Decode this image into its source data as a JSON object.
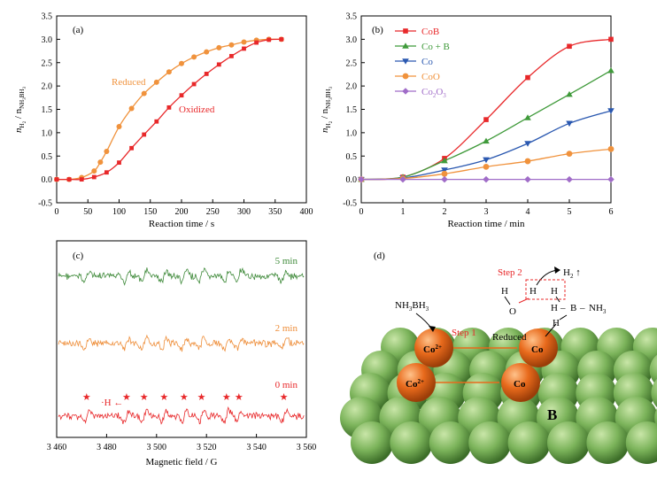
{
  "chart_data": [
    {
      "type": "line",
      "panel_label": "(a)",
      "xlabel": "Reaction time / s",
      "ylabel": "n",
      "ylabel_sub1": "H",
      "ylabel_sub2": "2",
      "ylabel_mid": " / n",
      "ylabel_sub3": "NH",
      "ylabel_sub4": "3",
      "ylabel_sub5": "BH",
      "ylabel_sub6": "3",
      "xlim": [
        0,
        400
      ],
      "ylim": [
        -0.5,
        3.5
      ],
      "xticks": [
        0,
        50,
        100,
        150,
        200,
        250,
        300,
        350,
        400
      ],
      "yticks": [
        -0.5,
        0.0,
        0.5,
        1.0,
        1.5,
        2.0,
        2.5,
        3.0,
        3.5
      ],
      "series": [
        {
          "name": "Reduced",
          "color": "#f0923c",
          "marker": "circle",
          "x": [
            0,
            20,
            40,
            60,
            70,
            80,
            100,
            120,
            140,
            160,
            180,
            200,
            220,
            240,
            260,
            280,
            300,
            320,
            340,
            360
          ],
          "y": [
            0.0,
            0.0,
            0.04,
            0.18,
            0.37,
            0.6,
            1.13,
            1.52,
            1.84,
            2.08,
            2.3,
            2.48,
            2.62,
            2.73,
            2.82,
            2.88,
            2.94,
            2.98,
            3.0,
            3.0
          ]
        },
        {
          "name": "Oxidized",
          "color": "#e8282a",
          "marker": "square",
          "x": [
            0,
            20,
            40,
            60,
            80,
            100,
            120,
            140,
            160,
            180,
            200,
            220,
            240,
            260,
            280,
            300,
            320,
            340,
            360
          ],
          "y": [
            0.0,
            0.0,
            0.0,
            0.05,
            0.15,
            0.36,
            0.67,
            0.96,
            1.24,
            1.54,
            1.8,
            2.04,
            2.26,
            2.46,
            2.64,
            2.8,
            2.93,
            2.99,
            3.0
          ]
        }
      ],
      "annotations": [
        {
          "text": "Reduced",
          "color": "#f0923c"
        },
        {
          "text": "Oxidized",
          "color": "#e8282a"
        }
      ]
    },
    {
      "type": "line",
      "panel_label": "(b)",
      "xlabel": "Reaction time / min",
      "xlim": [
        0,
        6
      ],
      "ylim": [
        -0.5,
        3.5
      ],
      "xticks": [
        0,
        1,
        2,
        3,
        4,
        5,
        6
      ],
      "yticks": [
        -0.5,
        0.0,
        0.5,
        1.0,
        1.5,
        2.0,
        2.5,
        3.0,
        3.5
      ],
      "legend_position": "top-left",
      "series": [
        {
          "name": "CoB",
          "color": "#e8282a",
          "marker": "square",
          "x": [
            0,
            1,
            2,
            3,
            4,
            5,
            6
          ],
          "y": [
            0.0,
            0.05,
            0.45,
            1.28,
            2.18,
            2.85,
            3.0
          ]
        },
        {
          "name": "Co + B",
          "color": "#3f9a3a",
          "marker": "triangle-up",
          "x": [
            0,
            1,
            2,
            3,
            4,
            5,
            6
          ],
          "y": [
            0.0,
            0.05,
            0.4,
            0.82,
            1.32,
            1.82,
            2.33
          ]
        },
        {
          "name": "Co",
          "color": "#2a58b0",
          "marker": "triangle-down",
          "x": [
            0,
            1,
            2,
            3,
            4,
            5,
            6
          ],
          "y": [
            0.0,
            0.03,
            0.2,
            0.42,
            0.77,
            1.2,
            1.47
          ]
        },
        {
          "name": "CoO",
          "color": "#f0923c",
          "marker": "circle",
          "x": [
            0,
            1,
            2,
            3,
            4,
            5,
            6
          ],
          "y": [
            0.0,
            0.02,
            0.12,
            0.27,
            0.39,
            0.55,
            0.65
          ]
        },
        {
          "name": "Co2O3",
          "name_main": "Co",
          "name_sub1": "2",
          "name_mid": "O",
          "name_sub2": "3",
          "color": "#a06cc8",
          "marker": "diamond",
          "x": [
            0,
            1,
            2,
            3,
            4,
            5,
            6
          ],
          "y": [
            0.0,
            0.0,
            0.0,
            0.0,
            0.0,
            0.0,
            0.0
          ]
        }
      ]
    },
    {
      "type": "line",
      "panel_label": "(c)",
      "xlabel": "Magnetic field / G",
      "xlim": [
        3460,
        3560
      ],
      "xticks": [
        "3 460",
        "3 480",
        "3 500",
        "3 520",
        "3 540",
        "3 560"
      ],
      "xtick_values": [
        3460,
        3480,
        3500,
        3520,
        3540,
        3560
      ],
      "line_positions": [
        3472,
        3488,
        3495,
        3503,
        3511,
        3518,
        3528,
        3533,
        3551
      ],
      "series": [
        {
          "name": "5 min",
          "color": "#3f8a3a"
        },
        {
          "name": "2 min",
          "color": "#ee8e3a"
        },
        {
          "name": "0 min",
          "color": "#e8282a"
        }
      ],
      "annotation": "·H ←"
    }
  ],
  "schematic": {
    "panel_label": "(d)",
    "boron_label": "B",
    "ions": [
      {
        "label": "Co",
        "sup": "2+"
      },
      {
        "label": "Co"
      },
      {
        "label": "Co",
        "sup": "2+"
      },
      {
        "label": "Co"
      }
    ],
    "reagent": {
      "main": "NH",
      "sub1": "3",
      "mid": "BH",
      "sub2": "3"
    },
    "step1": "Step 1",
    "reduced": "Reduced",
    "step2": "Step 2",
    "h2": {
      "main": "H",
      "sub": "2",
      "arrow": " ↑"
    },
    "molecule": {
      "H1": "H",
      "O": "O",
      "H2": "H",
      "H3": "H",
      "H4": "H",
      "B": "B",
      "NH3": "NH",
      "NH3sub": "3",
      "dash1": "–",
      "dash2": "–"
    },
    "colors": {
      "sphere": "#7bb35a",
      "ion": "#e86a1c",
      "accent": "#e8282a"
    }
  }
}
